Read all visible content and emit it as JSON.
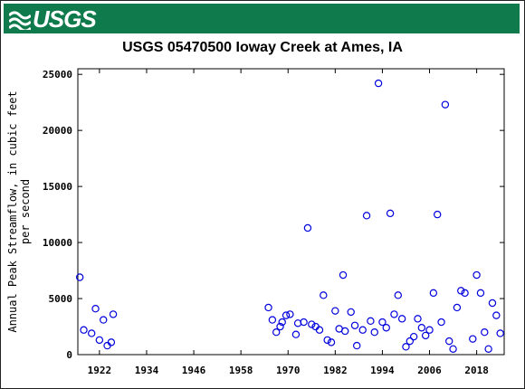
{
  "header": {
    "logo_text": "USGS",
    "brand_color": "#0f7a4c"
  },
  "chart_data": {
    "type": "scatter",
    "title": "USGS 05470500 Ioway Creek at Ames, IA",
    "xlabel": "",
    "ylabel_lines": [
      "Annual Peak Streamflow, in cubic feet",
      "per second"
    ],
    "xlim": [
      1916.5,
      2025
    ],
    "ylim": [
      0,
      25500
    ],
    "xticks": [
      1922,
      1934,
      1946,
      1958,
      1970,
      1982,
      1994,
      2006,
      2018
    ],
    "yticks": [
      0,
      5000,
      10000,
      15000,
      20000,
      25000
    ],
    "marker_color": "#0000dd",
    "marker": "open-circle",
    "grid": false,
    "series": [
      {
        "points": [
          [
            1917,
            6900
          ],
          [
            1918,
            2200
          ],
          [
            1920,
            1900
          ],
          [
            1921,
            4100
          ],
          [
            1922,
            1300
          ],
          [
            1923,
            3100
          ],
          [
            1924,
            800
          ],
          [
            1925,
            1100
          ],
          [
            1925.5,
            3600
          ],
          [
            1965,
            4200
          ],
          [
            1966,
            3100
          ],
          [
            1967,
            2000
          ],
          [
            1968,
            2500
          ],
          [
            1968.5,
            2900
          ],
          [
            1969.5,
            3500
          ],
          [
            1970.5,
            3600
          ],
          [
            1972,
            1800
          ],
          [
            1972.5,
            2800
          ],
          [
            1974,
            2900
          ],
          [
            1975,
            11300
          ],
          [
            1976,
            2700
          ],
          [
            1977,
            2500
          ],
          [
            1978,
            2200
          ],
          [
            1979,
            5300
          ],
          [
            1980,
            1300
          ],
          [
            1981,
            1100
          ],
          [
            1982,
            3900
          ],
          [
            1983,
            2300
          ],
          [
            1984,
            7100
          ],
          [
            1984.5,
            2100
          ],
          [
            1986,
            3800
          ],
          [
            1987,
            2600
          ],
          [
            1987.5,
            800
          ],
          [
            1989,
            2200
          ],
          [
            1990,
            12400
          ],
          [
            1991,
            3000
          ],
          [
            1992,
            2000
          ],
          [
            1993,
            24200
          ],
          [
            1994,
            2900
          ],
          [
            1995,
            2400
          ],
          [
            1996,
            12600
          ],
          [
            1997,
            3600
          ],
          [
            1998,
            5300
          ],
          [
            1999,
            3200
          ],
          [
            2000,
            700
          ],
          [
            2001,
            1200
          ],
          [
            2002,
            1600
          ],
          [
            2003,
            3200
          ],
          [
            2004,
            2400
          ],
          [
            2005,
            1700
          ],
          [
            2006,
            2200
          ],
          [
            2007,
            5500
          ],
          [
            2008,
            12500
          ],
          [
            2009,
            2900
          ],
          [
            2010,
            22300
          ],
          [
            2011,
            1200
          ],
          [
            2012,
            500
          ],
          [
            2013,
            4200
          ],
          [
            2014,
            5700
          ],
          [
            2015,
            5500
          ],
          [
            2017,
            1400
          ],
          [
            2018,
            7100
          ],
          [
            2019,
            5500
          ],
          [
            2020,
            2000
          ],
          [
            2021,
            500
          ],
          [
            2022,
            4600
          ],
          [
            2023,
            3500
          ],
          [
            2024,
            1900
          ]
        ]
      }
    ]
  }
}
